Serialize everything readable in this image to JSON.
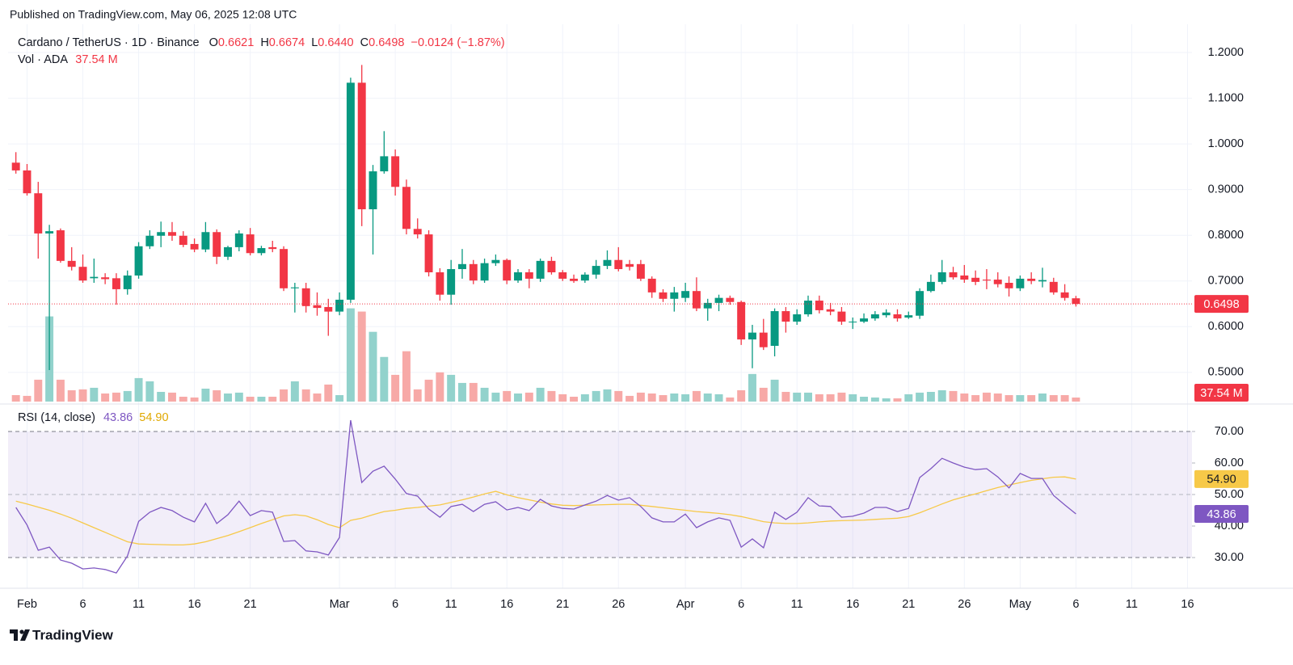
{
  "published": "Published on TradingView.com, May 06, 2025 12:08 UTC",
  "footer": "TradingView",
  "chart_data": {
    "type": "candlestick",
    "title": "Cardano / TetherUS · 1D · Binance",
    "ohlc_keys": [
      "O",
      "H",
      "L",
      "C"
    ],
    "ohlc_labels": [
      "0.6621",
      "0.6674",
      "0.6440",
      "0.6498"
    ],
    "change": "−0.0124 (−1.87%)",
    "up_color": "#089981",
    "down_color": "#f23645",
    "x": [
      31,
      32,
      33,
      34,
      35,
      36,
      37,
      38,
      39,
      40,
      41,
      42,
      43,
      44,
      45,
      46,
      47,
      48,
      49,
      50,
      51,
      52,
      53,
      54,
      55,
      56,
      57,
      58,
      59,
      60,
      61,
      62,
      63,
      64,
      65,
      66,
      67,
      68,
      69,
      70,
      71,
      72,
      73,
      74,
      75,
      76,
      77,
      78,
      79,
      80,
      81,
      82,
      83,
      84,
      85,
      86,
      87,
      88,
      89,
      90,
      91,
      92,
      93,
      94,
      95,
      96,
      97,
      98,
      99,
      100,
      101,
      102,
      103,
      104,
      105,
      106,
      107,
      108,
      109,
      110,
      111,
      112,
      113,
      114,
      115,
      116,
      117,
      118,
      119,
      120,
      121,
      122,
      123,
      124,
      125,
      126
    ],
    "open": [
      0.959,
      0.942,
      0.892,
      0.804,
      0.811,
      0.744,
      0.731,
      0.706,
      0.708,
      0.706,
      0.682,
      0.712,
      0.776,
      0.799,
      0.807,
      0.799,
      0.781,
      0.769,
      0.807,
      0.753,
      0.774,
      0.802,
      0.761,
      0.774,
      0.77,
      0.684,
      0.684,
      0.647,
      0.643,
      0.633,
      0.659,
      1.134,
      0.857,
      0.94,
      0.973,
      0.906,
      0.814,
      0.802,
      0.719,
      0.67,
      0.726,
      0.737,
      0.701,
      0.739,
      0.746,
      0.701,
      0.719,
      0.705,
      0.744,
      0.719,
      0.705,
      0.701,
      0.714,
      0.733,
      0.746,
      0.737,
      0.737,
      0.705,
      0.675,
      0.661,
      0.663,
      0.678,
      0.64,
      0.652,
      0.663,
      0.654,
      0.572,
      0.587,
      0.558,
      0.634,
      0.611,
      0.627,
      0.657,
      0.638,
      0.633,
      0.61,
      0.611,
      0.618,
      0.625,
      0.627,
      0.62,
      0.624,
      0.678,
      0.698,
      0.719,
      0.712,
      0.707,
      0.703,
      0.703,
      0.696,
      0.684,
      0.705,
      0.699,
      0.698,
      0.675,
      0.6621
    ],
    "high": [
      0.982,
      0.956,
      0.917,
      0.823,
      0.815,
      0.774,
      0.758,
      0.749,
      0.717,
      0.717,
      0.723,
      0.785,
      0.811,
      0.83,
      0.829,
      0.809,
      0.793,
      0.829,
      0.813,
      0.777,
      0.811,
      0.816,
      0.777,
      0.788,
      0.776,
      0.696,
      0.696,
      0.675,
      0.661,
      0.675,
      1.145,
      1.173,
      0.954,
      1.028,
      0.988,
      0.922,
      0.837,
      0.811,
      0.728,
      0.746,
      0.77,
      0.746,
      0.749,
      0.758,
      0.749,
      0.726,
      0.726,
      0.749,
      0.753,
      0.724,
      0.714,
      0.719,
      0.746,
      0.767,
      0.774,
      0.746,
      0.746,
      0.71,
      0.682,
      0.687,
      0.696,
      0.708,
      0.661,
      0.67,
      0.668,
      0.657,
      0.604,
      0.617,
      0.64,
      0.643,
      0.638,
      0.668,
      0.668,
      0.652,
      0.643,
      0.62,
      0.629,
      0.634,
      0.638,
      0.638,
      0.633,
      0.684,
      0.714,
      0.746,
      0.731,
      0.735,
      0.723,
      0.726,
      0.719,
      0.71,
      0.712,
      0.719,
      0.729,
      0.707,
      0.693,
      0.6674
    ],
    "low": [
      0.935,
      0.887,
      0.749,
      0.505,
      0.74,
      0.723,
      0.696,
      0.696,
      0.693,
      0.648,
      0.67,
      0.705,
      0.77,
      0.774,
      0.788,
      0.774,
      0.763,
      0.763,
      0.737,
      0.746,
      0.765,
      0.756,
      0.756,
      0.763,
      0.678,
      0.631,
      0.631,
      0.624,
      0.58,
      0.625,
      0.652,
      0.82,
      0.758,
      0.935,
      0.887,
      0.802,
      0.793,
      0.71,
      0.657,
      0.648,
      0.705,
      0.693,
      0.696,
      0.733,
      0.693,
      0.696,
      0.684,
      0.698,
      0.714,
      0.7,
      0.696,
      0.696,
      0.705,
      0.726,
      0.721,
      0.723,
      0.7,
      0.663,
      0.654,
      0.633,
      0.654,
      0.634,
      0.613,
      0.634,
      0.648,
      0.56,
      0.509,
      0.549,
      0.535,
      0.587,
      0.604,
      0.622,
      0.629,
      0.625,
      0.604,
      0.595,
      0.608,
      0.613,
      0.62,
      0.611,
      0.617,
      0.617,
      0.675,
      0.693,
      0.703,
      0.696,
      0.691,
      0.682,
      0.686,
      0.666,
      0.678,
      0.693,
      0.686,
      0.67,
      0.657,
      0.644
    ],
    "close": [
      0.942,
      0.892,
      0.804,
      0.809,
      0.744,
      0.731,
      0.701,
      0.709,
      0.704,
      0.682,
      0.712,
      0.776,
      0.799,
      0.807,
      0.799,
      0.779,
      0.769,
      0.807,
      0.753,
      0.774,
      0.804,
      0.761,
      0.772,
      0.77,
      0.684,
      0.686,
      0.645,
      0.641,
      0.633,
      0.659,
      1.134,
      0.857,
      0.94,
      0.973,
      0.906,
      0.814,
      0.802,
      0.719,
      0.67,
      0.726,
      0.737,
      0.701,
      0.739,
      0.746,
      0.701,
      0.719,
      0.705,
      0.744,
      0.719,
      0.705,
      0.7,
      0.714,
      0.733,
      0.746,
      0.726,
      0.731,
      0.705,
      0.675,
      0.661,
      0.675,
      0.678,
      0.64,
      0.652,
      0.663,
      0.654,
      0.572,
      0.587,
      0.555,
      0.634,
      0.611,
      0.627,
      0.657,
      0.636,
      0.633,
      0.611,
      0.611,
      0.618,
      0.627,
      0.631,
      0.618,
      0.625,
      0.678,
      0.698,
      0.719,
      0.708,
      0.703,
      0.698,
      0.701,
      0.693,
      0.684,
      0.705,
      0.7,
      0.702,
      0.675,
      0.663,
      0.6498
    ],
    "xlim": [
      30.3,
      136.4
    ],
    "xticks": [
      {
        "value": 32,
        "label": "Feb"
      },
      {
        "value": 37,
        "label": "6"
      },
      {
        "value": 42,
        "label": "11"
      },
      {
        "value": 47,
        "label": "16"
      },
      {
        "value": 52,
        "label": "21"
      },
      {
        "value": 60,
        "label": "Mar"
      },
      {
        "value": 65,
        "label": "6"
      },
      {
        "value": 70,
        "label": "11"
      },
      {
        "value": 75,
        "label": "16"
      },
      {
        "value": 80,
        "label": "21"
      },
      {
        "value": 85,
        "label": "26"
      },
      {
        "value": 91,
        "label": "Apr"
      },
      {
        "value": 96,
        "label": "6"
      },
      {
        "value": 101,
        "label": "11"
      },
      {
        "value": 106,
        "label": "16"
      },
      {
        "value": 111,
        "label": "21"
      },
      {
        "value": 116,
        "label": "26"
      },
      {
        "value": 121,
        "label": "May"
      },
      {
        "value": 126,
        "label": "6"
      },
      {
        "value": 131,
        "label": "11"
      },
      {
        "value": 136,
        "label": "16"
      }
    ],
    "ylim": [
      0.436,
      1.262
    ],
    "yticks": [
      {
        "value": 0.5,
        "label": "0.5000"
      },
      {
        "value": 0.6,
        "label": "0.6000"
      },
      {
        "value": 0.7,
        "label": "0.7000"
      },
      {
        "value": 0.8,
        "label": "0.8000"
      },
      {
        "value": 0.9,
        "label": "0.9000"
      },
      {
        "value": 1.0,
        "label": "1.0000"
      },
      {
        "value": 1.1,
        "label": "1.1000"
      },
      {
        "value": 1.2,
        "label": "1.2000"
      }
    ],
    "grid": true,
    "volume": {
      "title": "Vol · ADA",
      "up_color": "#92d2cc",
      "down_color": "#f7a9a7",
      "ylim": [
        0,
        3500
      ],
      "last_label": "37.54 M",
      "values": [
        60,
        53,
        203,
        790,
        203,
        105,
        113,
        128,
        75,
        83,
        98,
        218,
        188,
        90,
        83,
        45,
        38,
        120,
        105,
        75,
        83,
        45,
        45,
        45,
        113,
        188,
        113,
        75,
        158,
        60,
        865,
        835,
        647,
        414,
        248,
        467,
        113,
        203,
        271,
        248,
        173,
        173,
        128,
        83,
        98,
        75,
        83,
        128,
        98,
        68,
        45,
        68,
        98,
        113,
        98,
        53,
        83,
        75,
        60,
        75,
        68,
        98,
        75,
        68,
        38,
        105,
        256,
        128,
        203,
        90,
        83,
        83,
        68,
        68,
        83,
        68,
        45,
        38,
        30,
        30,
        68,
        83,
        90,
        105,
        98,
        75,
        60,
        83,
        75,
        60,
        60,
        60,
        75,
        60,
        60,
        37.54
      ]
    },
    "rsi": {
      "title": "RSI (14, close)",
      "color": "#7e57c2",
      "values": [
        45.9,
        40.3,
        32.3,
        33.3,
        29.2,
        28.2,
        26.4,
        26.7,
        26.2,
        25.1,
        30.5,
        41.5,
        44.4,
        45.9,
        44.9,
        42.8,
        41.3,
        47.2,
        40.8,
        43.6,
        47.9,
        43.3,
        44.9,
        44.4,
        35.1,
        35.4,
        32.1,
        31.8,
        30.8,
        36.4,
        73.6,
        53.8,
        57.4,
        59.0,
        54.9,
        50.3,
        49.5,
        45.4,
        42.8,
        46.2,
        46.9,
        44.6,
        46.9,
        47.7,
        45.1,
        45.9,
        44.9,
        48.5,
        46.4,
        45.6,
        45.4,
        46.7,
        47.9,
        49.7,
        48.2,
        49.0,
        46.2,
        42.6,
        41.3,
        41.3,
        43.8,
        39.5,
        41.3,
        42.6,
        41.8,
        33.3,
        35.9,
        33.1,
        44.4,
        42.1,
        44.4,
        49.0,
        46.4,
        46.2,
        42.8,
        43.1,
        44.1,
        45.9,
        45.9,
        44.6,
        45.6,
        55.4,
        58.2,
        61.5,
        60.0,
        58.7,
        57.9,
        58.2,
        55.6,
        52.1,
        56.7,
        55.1,
        55.1,
        49.7,
        46.7,
        43.86
      ],
      "ma": {
        "color": "#f7c948",
        "last_label": "54.90",
        "values": [
          47.9,
          47.0,
          46.0,
          45.0,
          43.8,
          42.5,
          41.0,
          39.5,
          38.0,
          36.5,
          35.0,
          34.3,
          34.2,
          34.1,
          34.0,
          34.0,
          34.3,
          35.0,
          36.0,
          37.0,
          38.2,
          39.5,
          40.8,
          42.0,
          43.2,
          43.6,
          43.2,
          42.0,
          40.5,
          39.5,
          41.8,
          42.5,
          43.6,
          44.6,
          45.0,
          45.6,
          45.9,
          46.3,
          46.7,
          47.5,
          48.3,
          49.2,
          50.2,
          51.0,
          49.9,
          49.0,
          48.3,
          47.6,
          47.0,
          46.6,
          46.5,
          46.6,
          46.7,
          46.8,
          46.9,
          46.9,
          46.6,
          46.2,
          45.8,
          45.4,
          45.0,
          44.6,
          44.3,
          44.0,
          43.6,
          43.0,
          42.2,
          41.4,
          41.0,
          40.8,
          40.8,
          41.0,
          41.3,
          41.6,
          41.7,
          41.8,
          41.9,
          42.1,
          42.3,
          42.5,
          43.0,
          44.2,
          45.6,
          47.0,
          48.3,
          49.3,
          50.2,
          51.2,
          52.2,
          53.0,
          53.8,
          54.5,
          55.0,
          55.5,
          55.6,
          54.9
        ]
      },
      "ylim": [
        20.26,
        77.44
      ],
      "yticks": [
        {
          "value": 30,
          "label": "30.00"
        },
        {
          "value": 40,
          "label": "40.00"
        },
        {
          "value": 50,
          "label": "50.00"
        },
        {
          "value": 60,
          "label": "60.00"
        },
        {
          "value": 70,
          "label": "70.00"
        }
      ],
      "bands": {
        "upper": 70,
        "middle": 50,
        "lower": 30
      }
    }
  }
}
